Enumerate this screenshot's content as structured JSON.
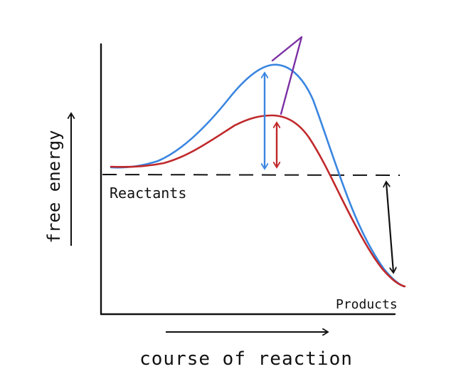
{
  "labels": {
    "y_axis": "free energy",
    "x_axis": "course of reaction",
    "reactants": "Reactants",
    "products": "Products"
  },
  "colors": {
    "axes": "#111111",
    "uncatalyzed_curve": "#3a86e0",
    "catalyzed_curve": "#c0282a",
    "pointer": "#7b2fa3",
    "delta_g_arrow": "#111111"
  }
}
